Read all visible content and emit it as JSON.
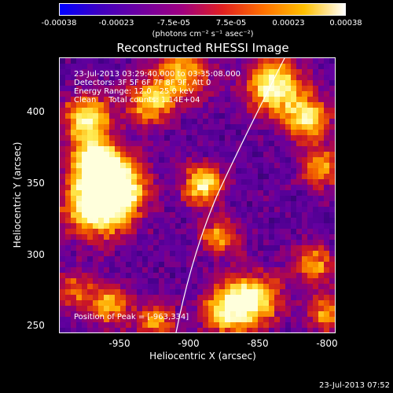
{
  "colorbar": {
    "tick_labels": [
      "-0.00038",
      "-0.00023",
      "-7.5e-05",
      "7.5e-05",
      "0.00023",
      "0.00038"
    ],
    "units": "(photons cm⁻² s⁻¹ asec⁻²)",
    "color_stops": [
      "#0000ff",
      "#4000c0",
      "#7000a0",
      "#a00080",
      "#e02020",
      "#ff7000",
      "#ffc000",
      "#ffffff"
    ]
  },
  "plot": {
    "title": "Reconstructed RHESSI Image",
    "info_lines": [
      "23-Jul-2013 03:29:40.000 to 03:35:08.000",
      "Detectors: 3F 5F 6F 7F 8F 9F, Att 0",
      "Energy Range: 12.0 - 25.0 keV",
      "Clean     Total counts: 1.14E+04"
    ],
    "peak_label": "Position of Peak = [-963,334]",
    "x_tick_labels": [
      "-950",
      "-900",
      "-850",
      "-800"
    ],
    "y_tick_labels": [
      "400",
      "350",
      "300",
      "250"
    ],
    "xlabel": "Heliocentric X (arcsec)",
    "ylabel": "Heliocentric Y (arcsec)"
  },
  "footer": {
    "timestamp": "23-Jul-2013 07:52"
  }
}
